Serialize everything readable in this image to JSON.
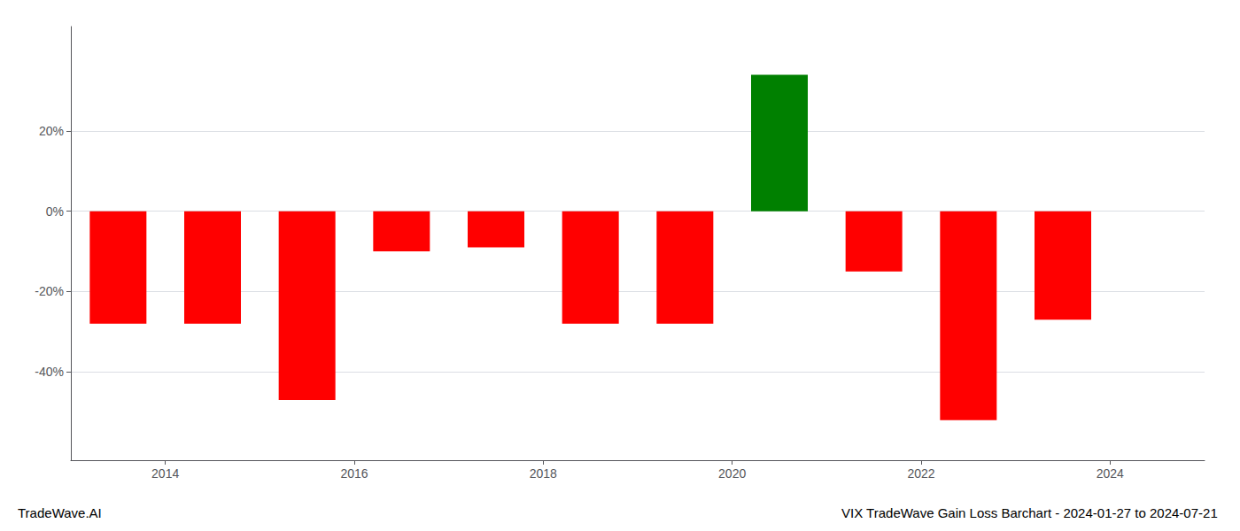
{
  "chart_data": {
    "type": "bar",
    "title": "VIX TradeWave Gain Loss Barchart - 2024-01-27 to 2024-07-21",
    "annotations": [
      "TradeWave.AI"
    ],
    "x": [
      2013.5,
      2014.5,
      2015.5,
      2016.5,
      2017.5,
      2018.5,
      2019.5,
      2020.5,
      2021.5,
      2022.5,
      2023.5
    ],
    "values": [
      -0.28,
      -0.28,
      -0.47,
      -0.1,
      -0.09,
      -0.28,
      -0.28,
      0.34,
      -0.15,
      -0.52,
      -0.27
    ],
    "colors": [
      "#ff0000",
      "#ff0000",
      "#ff0000",
      "#ff0000",
      "#ff0000",
      "#ff0000",
      "#ff0000",
      "#008000",
      "#ff0000",
      "#ff0000",
      "#ff0000"
    ],
    "xlim": [
      2013.0,
      2025.0
    ],
    "xticks": [
      2014,
      2016,
      2018,
      2020,
      2022,
      2024
    ],
    "ylim": [
      -0.62,
      0.46
    ],
    "yticks": [
      {
        "value": -0.4,
        "label": "-40%"
      },
      {
        "value": -0.2,
        "label": "-20%"
      },
      {
        "value": 0.0,
        "label": "0%"
      },
      {
        "value": 0.2,
        "label": "20%"
      }
    ],
    "grid": true
  }
}
